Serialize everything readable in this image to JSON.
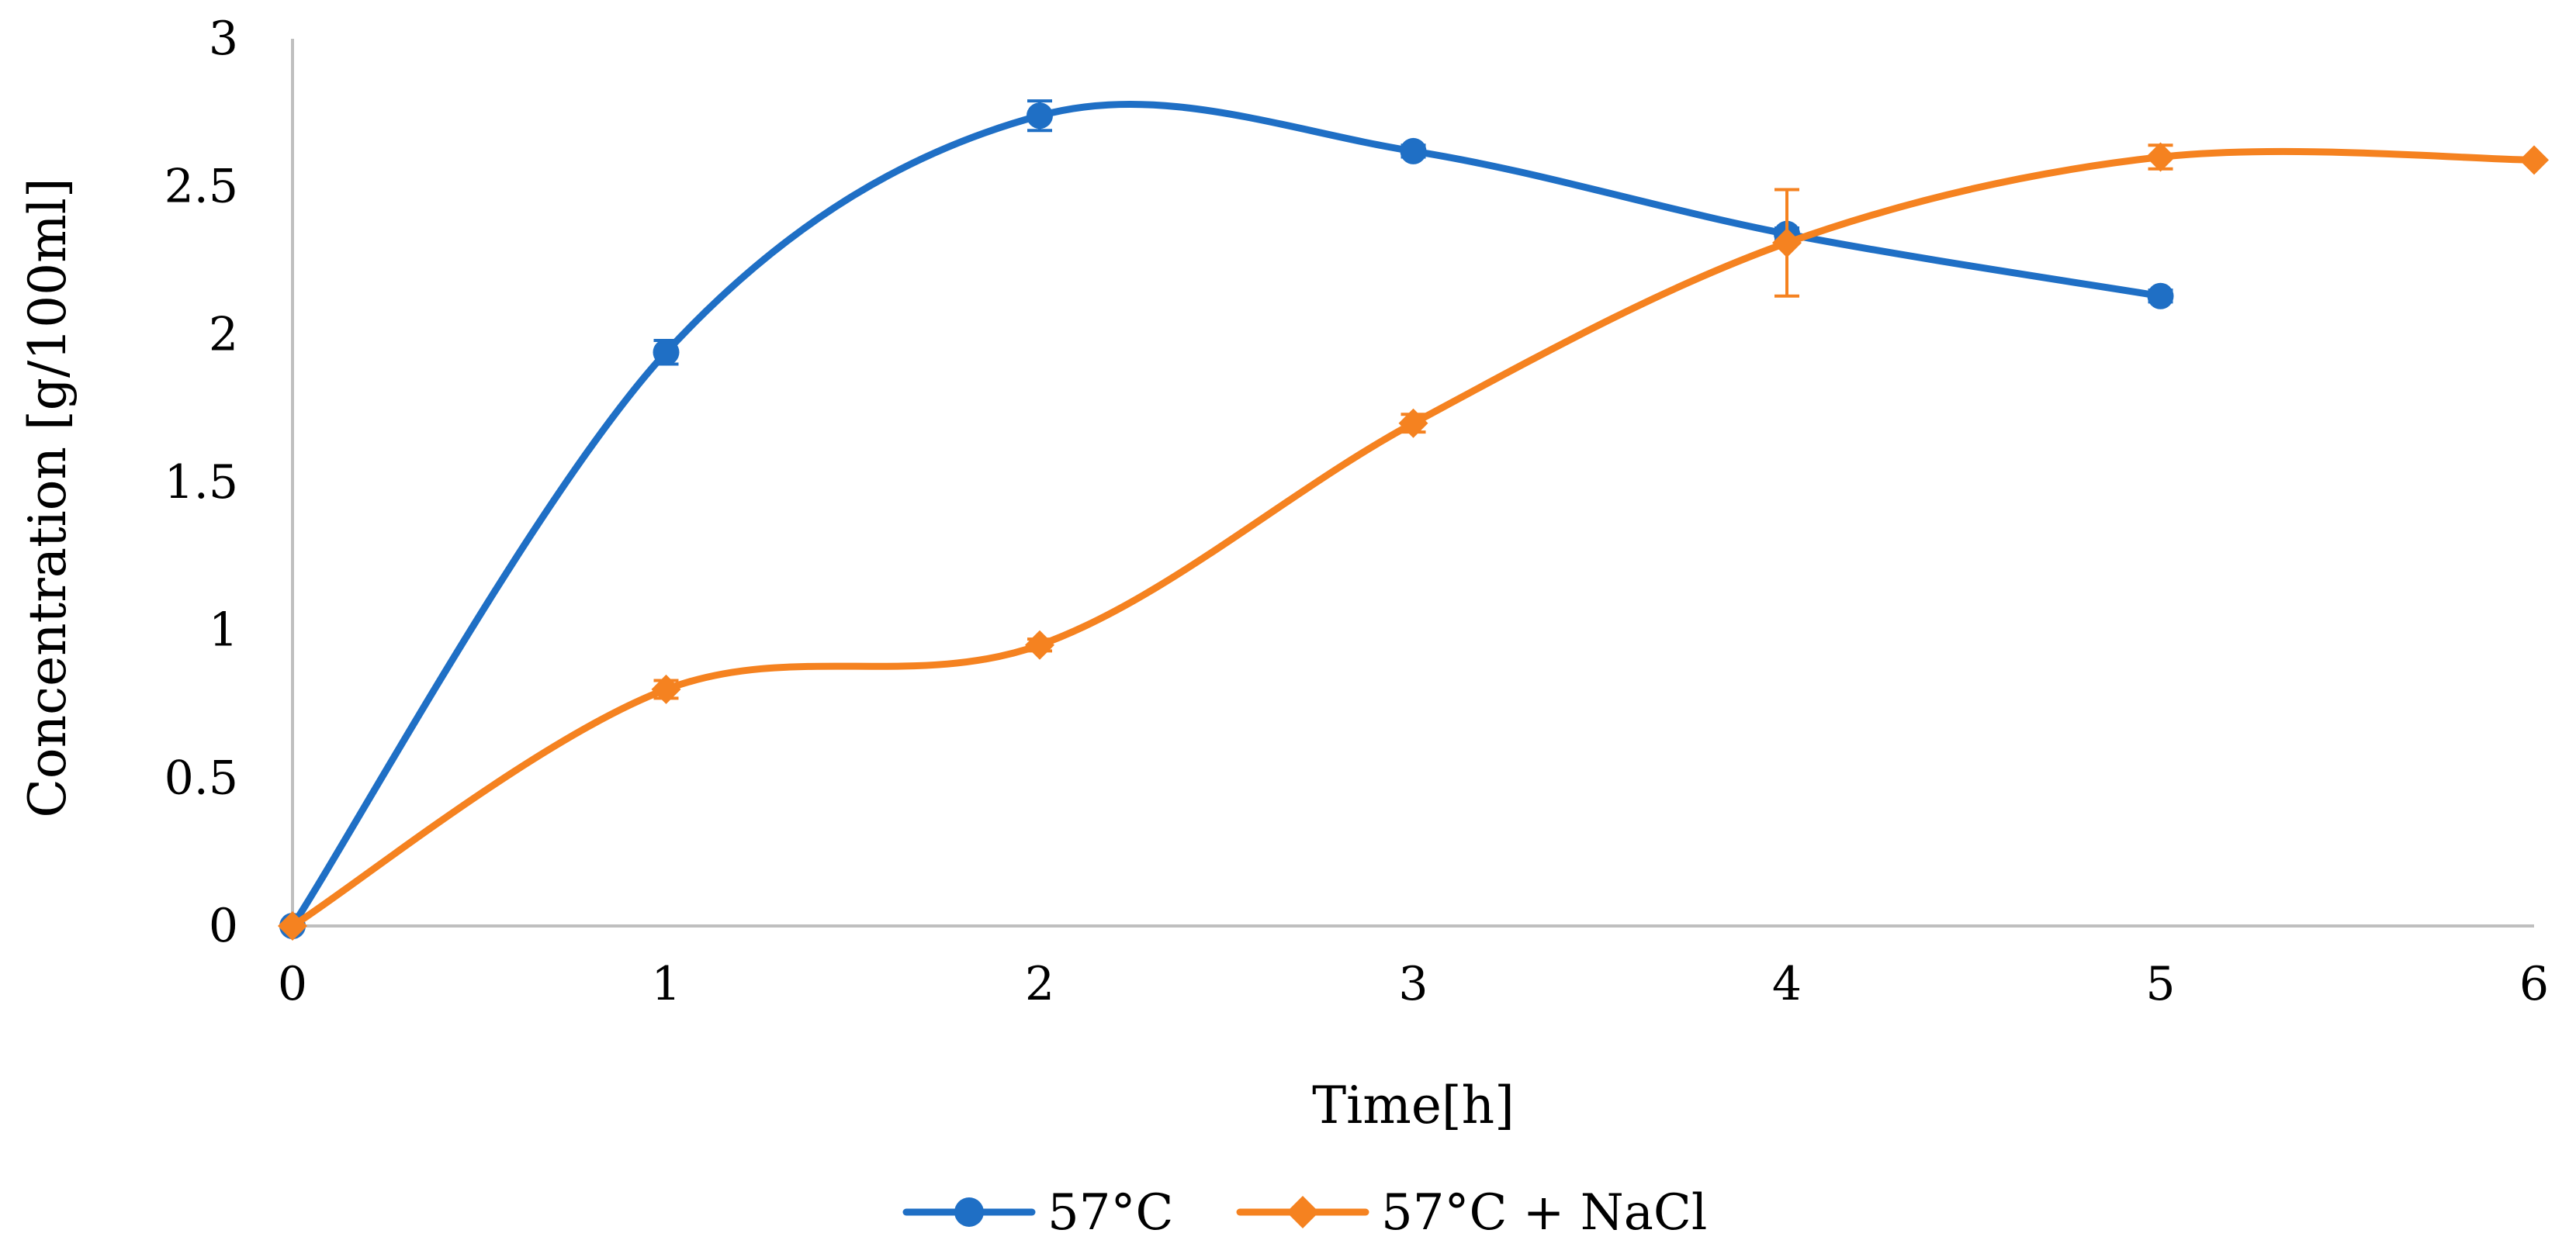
{
  "chart_data": {
    "type": "line",
    "title": "",
    "xlabel": "Time[h]",
    "ylabel": "Concentration [g/100ml]",
    "xlim": [
      0,
      6
    ],
    "ylim": [
      0,
      3
    ],
    "x_ticks": [
      "0",
      "1",
      "2",
      "3",
      "4",
      "5",
      "6"
    ],
    "y_ticks": [
      "0",
      "0.5",
      "1",
      "1.5",
      "2",
      "2.5",
      "3"
    ],
    "grid": false,
    "legend_position": "bottom",
    "series": [
      {
        "name": "57°C",
        "color": "#1F6FC5",
        "marker": "circle",
        "x": [
          0,
          1,
          2,
          3,
          4,
          5
        ],
        "y": [
          0,
          1.94,
          2.74,
          2.62,
          2.34,
          2.13
        ],
        "error": [
          0,
          0.04,
          0.05,
          0.02,
          0.02,
          0.02
        ]
      },
      {
        "name": "57°C + NaCl",
        "color": "#F58220",
        "marker": "diamond",
        "x": [
          0,
          1,
          2,
          3,
          4,
          5,
          6
        ],
        "y": [
          0,
          0.8,
          0.95,
          1.7,
          2.31,
          2.6,
          2.59
        ],
        "error": [
          0,
          0.03,
          0.02,
          0.03,
          0.18,
          0.04,
          0
        ]
      }
    ]
  }
}
